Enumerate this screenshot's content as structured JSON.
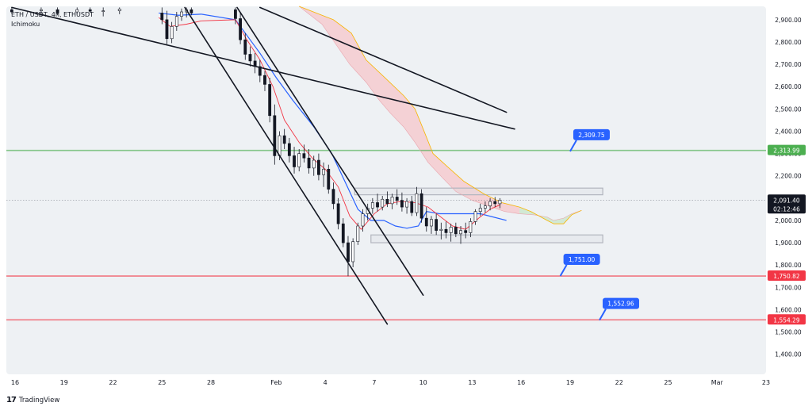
{
  "header": {
    "symbol_line": "ETH / USDT, 4h, ETHUSDT",
    "indicator": "Ichimoku"
  },
  "footer": {
    "brand": "TradingView"
  },
  "colors": {
    "bull": "#ffffff",
    "bear": "#131722",
    "kijun": "#2962ff",
    "tenkan": "#f23645",
    "span_a": "#f7b500",
    "cloud_bear": "#f5c6cb",
    "cloud_bull": "#c8e6c9",
    "green_level": "#4caf50",
    "red_level": "#f23645",
    "callout": "#2962ff"
  },
  "chart_data": {
    "type": "candlestick",
    "timeframe": "4h",
    "ylim": [
      1310,
      2960
    ],
    "y_ticks": [
      1400,
      1500,
      1600,
      1700,
      1800,
      1900,
      2000,
      2100,
      2200,
      2300,
      2400,
      2500,
      2600,
      2700,
      2800,
      2900
    ],
    "y_tick_labels": [
      "1,400.00",
      "1,500.00",
      "1,600.00",
      "1,700.00",
      "1,800.00",
      "1,900.00",
      "2,000.00",
      "2,100.00",
      "2,200.00",
      "2,300.00",
      "2,400.00",
      "2,500.00",
      "2,600.00",
      "2,700.00",
      "2,800.00",
      "2,900.00"
    ],
    "x_labels": [
      {
        "label": "16",
        "day": 16
      },
      {
        "label": "19",
        "day": 19
      },
      {
        "label": "22",
        "day": 22
      },
      {
        "label": "25",
        "day": 25
      },
      {
        "label": "28",
        "day": 28
      },
      {
        "label": "Feb",
        "day": 32
      },
      {
        "label": "4",
        "day": 35
      },
      {
        "label": "7",
        "day": 38
      },
      {
        "label": "10",
        "day": 41
      },
      {
        "label": "13",
        "day": 44
      },
      {
        "label": "16",
        "day": 47
      },
      {
        "label": "19",
        "day": 50
      },
      {
        "label": "22",
        "day": 53
      },
      {
        "label": "25",
        "day": 56
      },
      {
        "label": "Mar",
        "day": 59
      },
      {
        "label": "23",
        "day": 62
      }
    ],
    "current_price": {
      "price": 2091.4,
      "label": "2,091.40",
      "countdown": "02:12:46"
    },
    "levels": [
      {
        "name": "green",
        "price": 2313.99,
        "label": "2,313.99"
      },
      {
        "name": "red-upper",
        "price": 1750.82,
        "label": "1,750.82"
      },
      {
        "name": "red-lower",
        "price": 1554.29,
        "label": "1,554.29"
      }
    ],
    "callouts": [
      {
        "text": "2,309.75",
        "price": 2309.75,
        "day": 50
      },
      {
        "text": "1,751.00",
        "price": 1751.0,
        "day": 49.4
      },
      {
        "text": "1,552.96",
        "price": 1552.96,
        "day": 51.8
      }
    ],
    "trendlines": [
      {
        "x1": 15.8,
        "y1": 2955,
        "x2": 46.6,
        "y2": 2410
      },
      {
        "x1": 31.0,
        "y1": 2955,
        "x2": 46.1,
        "y2": 2485
      },
      {
        "x1": 26.4,
        "y1": 2955,
        "x2": 38.8,
        "y2": 1535
      },
      {
        "x1": 29.6,
        "y1": 2955,
        "x2": 41.0,
        "y2": 1665
      }
    ],
    "zones": [
      {
        "day_start": 36.8,
        "day_end": 52.0,
        "price_low": 2115,
        "price_high": 2145
      },
      {
        "day_start": 37.8,
        "day_end": 52.0,
        "price_low": 1900,
        "price_high": 1935
      }
    ],
    "ohlc": [
      [
        25.0,
        2930,
        2955,
        2880,
        2900
      ],
      [
        25.3,
        2900,
        2940,
        2790,
        2815
      ],
      [
        25.6,
        2815,
        2890,
        2795,
        2870
      ],
      [
        25.9,
        2870,
        2935,
        2850,
        2915
      ],
      [
        26.2,
        2915,
        2950,
        2895,
        2935
      ],
      [
        26.5,
        2935,
        2955,
        2910,
        2945
      ],
      [
        26.8,
        2945,
        2955,
        2920,
        2930
      ],
      [
        29.5,
        2945,
        2955,
        2880,
        2905
      ],
      [
        29.8,
        2905,
        2930,
        2790,
        2810
      ],
      [
        30.1,
        2810,
        2840,
        2720,
        2745
      ],
      [
        30.4,
        2745,
        2780,
        2690,
        2715
      ],
      [
        30.7,
        2715,
        2750,
        2660,
        2690
      ],
      [
        31.0,
        2690,
        2720,
        2620,
        2650
      ],
      [
        31.3,
        2650,
        2670,
        2580,
        2610
      ],
      [
        31.6,
        2610,
        2640,
        2440,
        2470
      ],
      [
        31.9,
        2470,
        2520,
        2250,
        2290
      ],
      [
        32.2,
        2290,
        2400,
        2270,
        2380
      ],
      [
        32.5,
        2380,
        2410,
        2320,
        2345
      ],
      [
        32.8,
        2345,
        2370,
        2260,
        2290
      ],
      [
        33.1,
        2290,
        2330,
        2210,
        2240
      ],
      [
        33.4,
        2240,
        2320,
        2220,
        2300
      ],
      [
        33.7,
        2300,
        2340,
        2260,
        2280
      ],
      [
        34.0,
        2280,
        2320,
        2210,
        2235
      ],
      [
        34.3,
        2235,
        2290,
        2200,
        2270
      ],
      [
        34.6,
        2270,
        2300,
        2180,
        2205
      ],
      [
        34.9,
        2205,
        2260,
        2150,
        2230
      ],
      [
        35.2,
        2230,
        2250,
        2120,
        2140
      ],
      [
        35.5,
        2140,
        2170,
        2050,
        2075
      ],
      [
        35.8,
        2075,
        2100,
        1960,
        1985
      ],
      [
        36.1,
        1985,
        2010,
        1880,
        1900
      ],
      [
        36.4,
        1900,
        1930,
        1750,
        1815
      ],
      [
        36.7,
        1815,
        1920,
        1790,
        1905
      ],
      [
        37.0,
        1905,
        1990,
        1890,
        1975
      ],
      [
        37.3,
        1975,
        2050,
        1950,
        2030
      ],
      [
        37.6,
        2030,
        2075,
        2000,
        2055
      ],
      [
        37.9,
        2055,
        2100,
        2030,
        2080
      ],
      [
        38.2,
        2080,
        2120,
        2040,
        2060
      ],
      [
        38.5,
        2060,
        2110,
        2045,
        2095
      ],
      [
        38.8,
        2095,
        2130,
        2060,
        2075
      ],
      [
        39.1,
        2075,
        2120,
        2050,
        2105
      ],
      [
        39.4,
        2105,
        2140,
        2070,
        2090
      ],
      [
        39.7,
        2090,
        2125,
        2040,
        2060
      ],
      [
        40.0,
        2060,
        2100,
        2030,
        2085
      ],
      [
        40.3,
        2085,
        2110,
        2020,
        2035
      ],
      [
        40.6,
        2035,
        2150,
        2020,
        2120
      ],
      [
        40.9,
        2120,
        2140,
        1990,
        2010
      ],
      [
        41.2,
        2010,
        2060,
        1950,
        1975
      ],
      [
        41.5,
        1975,
        2020,
        1940,
        2005
      ],
      [
        41.8,
        2005,
        2030,
        1935,
        1955
      ],
      [
        42.1,
        1955,
        1990,
        1915,
        1960
      ],
      [
        42.4,
        1960,
        1995,
        1920,
        1945
      ],
      [
        42.7,
        1945,
        1985,
        1905,
        1970
      ],
      [
        43.0,
        1970,
        1990,
        1925,
        1940
      ],
      [
        43.3,
        1940,
        1975,
        1895,
        1955
      ],
      [
        43.6,
        1955,
        1990,
        1920,
        1945
      ],
      [
        43.9,
        1945,
        2010,
        1925,
        1995
      ],
      [
        44.2,
        1995,
        2050,
        1980,
        2040
      ],
      [
        44.5,
        2040,
        2075,
        2020,
        2055
      ],
      [
        44.8,
        2055,
        2085,
        2035,
        2065
      ],
      [
        45.1,
        2065,
        2100,
        2045,
        2085
      ],
      [
        45.4,
        2085,
        2105,
        2060,
        2075
      ],
      [
        45.7,
        2075,
        2100,
        2055,
        2091
      ]
    ],
    "lagging_ohlc": [
      [
        15.8,
        2945,
        2955,
        2925,
        2935
      ],
      [
        17.6,
        2940,
        2955,
        2915,
        2945
      ],
      [
        18.6,
        2945,
        2955,
        2920,
        2930
      ],
      [
        19.8,
        2935,
        2955,
        2925,
        2945
      ],
      [
        20.6,
        2945,
        2955,
        2930,
        2938
      ],
      [
        21.4,
        2938,
        2955,
        2915,
        2940
      ],
      [
        22.4,
        2940,
        2955,
        2925,
        2948
      ]
    ],
    "tenkan": [
      [
        24.8,
        2910
      ],
      [
        25.5,
        2870
      ],
      [
        26.5,
        2880
      ],
      [
        27.4,
        2895
      ],
      [
        29.5,
        2900
      ],
      [
        30.2,
        2810
      ],
      [
        31.0,
        2720
      ],
      [
        31.8,
        2600
      ],
      [
        32.5,
        2450
      ],
      [
        33.4,
        2350
      ],
      [
        34.2,
        2280
      ],
      [
        35.0,
        2230
      ],
      [
        35.8,
        2150
      ],
      [
        36.5,
        2020
      ],
      [
        37.2,
        1960
      ],
      [
        38.0,
        2030
      ],
      [
        38.8,
        2075
      ],
      [
        39.6,
        2085
      ],
      [
        40.5,
        2080
      ],
      [
        41.3,
        2060
      ],
      [
        42.0,
        2020
      ],
      [
        42.8,
        1975
      ],
      [
        43.6,
        1960
      ],
      [
        44.4,
        2010
      ],
      [
        45.1,
        2050
      ],
      [
        45.7,
        2070
      ]
    ],
    "kijun": [
      [
        24.8,
        2930
      ],
      [
        26.0,
        2920
      ],
      [
        27.4,
        2925
      ],
      [
        29.5,
        2900
      ],
      [
        31.0,
        2750
      ],
      [
        32.0,
        2640
      ],
      [
        33.0,
        2540
      ],
      [
        34.3,
        2420
      ],
      [
        35.4,
        2300
      ],
      [
        36.3,
        2160
      ],
      [
        37.0,
        2050
      ],
      [
        37.8,
        2000
      ],
      [
        38.6,
        2000
      ],
      [
        39.3,
        1975
      ],
      [
        40.0,
        1965
      ],
      [
        40.7,
        1975
      ],
      [
        41.2,
        2040
      ],
      [
        42.0,
        2030
      ],
      [
        43.0,
        2030
      ],
      [
        44.5,
        2030
      ],
      [
        46.1,
        2000
      ]
    ],
    "span_a": [
      [
        33.4,
        2960
      ],
      [
        35.5,
        2900
      ],
      [
        36.6,
        2840
      ],
      [
        37.5,
        2720
      ],
      [
        38.8,
        2630
      ],
      [
        39.8,
        2560
      ],
      [
        40.5,
        2500
      ],
      [
        41.0,
        2410
      ],
      [
        41.6,
        2300
      ],
      [
        42.5,
        2240
      ],
      [
        43.5,
        2175
      ],
      [
        44.7,
        2120
      ],
      [
        45.8,
        2080
      ],
      [
        46.9,
        2060
      ],
      [
        47.6,
        2040
      ],
      [
        48.6,
        2000
      ],
      [
        49.0,
        1985
      ],
      [
        49.6,
        1985
      ],
      [
        50.1,
        2025
      ],
      [
        50.7,
        2045
      ]
    ],
    "span_b": [
      [
        33.4,
        2960
      ],
      [
        34.8,
        2880
      ],
      [
        36.5,
        2700
      ],
      [
        37.5,
        2620
      ],
      [
        38.3,
        2540
      ],
      [
        39.0,
        2480
      ],
      [
        39.8,
        2420
      ],
      [
        40.5,
        2350
      ],
      [
        41.3,
        2260
      ],
      [
        42.2,
        2190
      ],
      [
        43.0,
        2130
      ],
      [
        44.0,
        2090
      ],
      [
        45.0,
        2065
      ],
      [
        46.0,
        2040
      ],
      [
        46.9,
        2030
      ],
      [
        47.8,
        2025
      ],
      [
        48.6,
        2015
      ],
      [
        49.0,
        2000
      ],
      [
        49.6,
        2010
      ],
      [
        50.1,
        2030
      ],
      [
        50.7,
        2045
      ]
    ]
  }
}
